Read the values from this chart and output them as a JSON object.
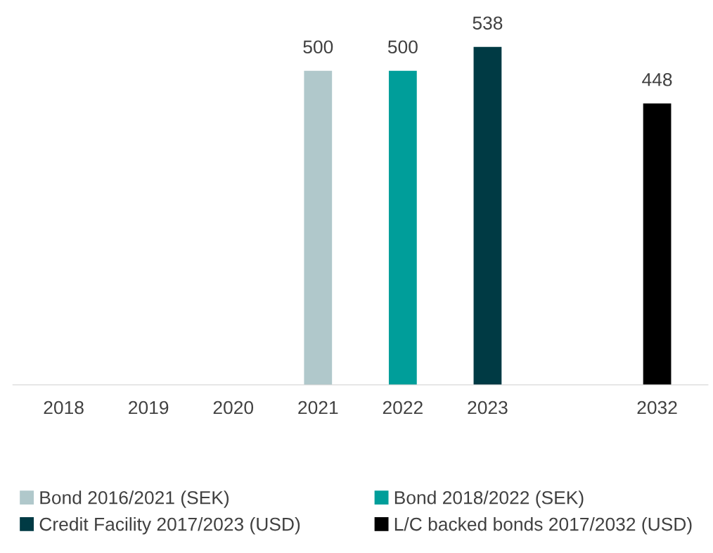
{
  "chart_data": {
    "type": "bar",
    "data_labels": true,
    "grid": false,
    "legend": "bottom",
    "categories": [
      "2018",
      "2019",
      "2020",
      "2021",
      "2022",
      "2023",
      null,
      "2032"
    ],
    "series": [
      {
        "name": "Bond 2016/2021 (SEK)",
        "color": "#b0c8cb",
        "values": [
          null,
          null,
          null,
          500,
          null,
          null,
          null,
          null
        ]
      },
      {
        "name": "Bond 2018/2022 (SEK)",
        "color": "#009e9a",
        "values": [
          null,
          null,
          null,
          null,
          500,
          null,
          null,
          null
        ]
      },
      {
        "name": "Credit Facility 2017/2023 (USD)",
        "color": "#003a44",
        "values": [
          null,
          null,
          null,
          null,
          null,
          538,
          null,
          null
        ]
      },
      {
        "name": "L/C backed bonds 2017/2032 (USD)",
        "color": "#000000",
        "values": [
          null,
          null,
          null,
          null,
          null,
          null,
          null,
          448
        ]
      }
    ]
  }
}
